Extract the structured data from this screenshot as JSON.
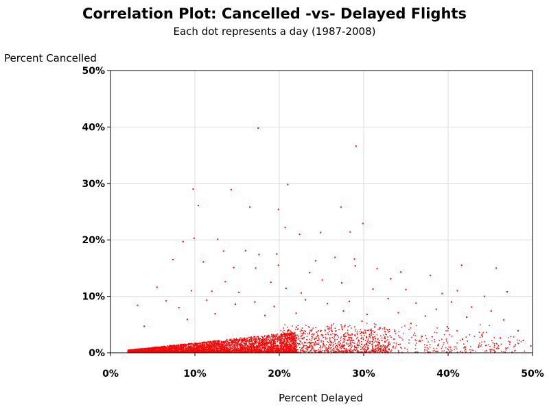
{
  "chart_data": {
    "type": "scatter",
    "title": "Correlation Plot: Cancelled -vs- Delayed Flights",
    "subtitle": "Each dot represents a day (1987-2008)",
    "xlabel": "Percent Delayed",
    "ylabel": "Percent Cancelled",
    "xlim": [
      0,
      50
    ],
    "ylim": [
      0,
      50
    ],
    "x_ticks": [
      0,
      10,
      20,
      30,
      40,
      50
    ],
    "y_ticks": [
      0,
      10,
      20,
      30,
      40,
      50
    ],
    "x_tick_labels": [
      "0%",
      "10%",
      "20%",
      "30%",
      "40%",
      "50%"
    ],
    "y_tick_labels": [
      "0%",
      "10%",
      "20%",
      "30%",
      "40%",
      "50%"
    ],
    "grid": true,
    "marker_color": "#ff0000",
    "series": [
      {
        "points": [
          [
            17.5,
            39.8
          ],
          [
            29.1,
            36.6
          ],
          [
            9.8,
            29.0
          ],
          [
            14.3,
            28.9
          ],
          [
            21.0,
            29.8
          ],
          [
            10.4,
            26.1
          ],
          [
            16.5,
            25.8
          ],
          [
            19.9,
            25.4
          ],
          [
            27.3,
            25.8
          ],
          [
            29.9,
            22.9
          ],
          [
            20.7,
            22.2
          ],
          [
            22.4,
            21.0
          ],
          [
            24.9,
            21.3
          ],
          [
            28.4,
            21.4
          ],
          [
            8.6,
            19.7
          ],
          [
            9.9,
            20.3
          ],
          [
            12.7,
            20.1
          ],
          [
            13.4,
            18.0
          ],
          [
            16.0,
            18.1
          ],
          [
            17.6,
            17.4
          ],
          [
            19.7,
            17.5
          ],
          [
            24.3,
            16.3
          ],
          [
            26.6,
            16.9
          ],
          [
            28.9,
            16.6
          ],
          [
            7.4,
            16.5
          ],
          [
            11.0,
            16.1
          ],
          [
            14.6,
            15.1
          ],
          [
            17.2,
            15.0
          ],
          [
            19.9,
            15.5
          ],
          [
            23.6,
            14.2
          ],
          [
            29.0,
            15.4
          ],
          [
            31.6,
            14.9
          ],
          [
            34.4,
            14.3
          ],
          [
            41.6,
            15.5
          ],
          [
            45.7,
            15.0
          ],
          [
            37.9,
            13.7
          ],
          [
            33.2,
            13.1
          ],
          [
            25.1,
            12.9
          ],
          [
            27.4,
            12.4
          ],
          [
            19.0,
            12.5
          ],
          [
            13.6,
            12.6
          ],
          [
            5.5,
            11.6
          ],
          [
            9.6,
            11.0
          ],
          [
            12.0,
            10.9
          ],
          [
            15.2,
            10.7
          ],
          [
            20.8,
            11.4
          ],
          [
            22.6,
            10.6
          ],
          [
            31.1,
            11.3
          ],
          [
            35.0,
            11.2
          ],
          [
            39.3,
            10.5
          ],
          [
            41.1,
            11.0
          ],
          [
            44.3,
            10.0
          ],
          [
            47.0,
            10.8
          ],
          [
            3.2,
            8.4
          ],
          [
            6.6,
            9.2
          ],
          [
            8.1,
            8.0
          ],
          [
            11.4,
            9.3
          ],
          [
            14.8,
            8.6
          ],
          [
            17.1,
            9.0
          ],
          [
            19.4,
            8.2
          ],
          [
            23.1,
            9.4
          ],
          [
            25.7,
            8.7
          ],
          [
            28.3,
            9.1
          ],
          [
            32.9,
            9.6
          ],
          [
            36.2,
            8.8
          ],
          [
            38.6,
            7.7
          ],
          [
            40.4,
            9.0
          ],
          [
            42.8,
            8.1
          ],
          [
            45.1,
            7.4
          ],
          [
            46.6,
            5.8
          ],
          [
            48.3,
            3.9
          ],
          [
            49.8,
            1.2
          ],
          [
            48.9,
            2.2
          ],
          [
            44.0,
            3.1
          ],
          [
            42.2,
            6.3
          ],
          [
            39.9,
            4.6
          ],
          [
            37.3,
            6.5
          ],
          [
            35.6,
            5.2
          ],
          [
            34.1,
            7.1
          ],
          [
            30.4,
            6.8
          ],
          [
            27.6,
            7.4
          ],
          [
            22.0,
            7.0
          ],
          [
            18.3,
            6.6
          ],
          [
            12.4,
            6.9
          ],
          [
            9.1,
            5.9
          ],
          [
            4.0,
            4.7
          ],
          [
            43.6,
            1.0
          ],
          [
            46.2,
            2.6
          ],
          [
            41.7,
            2.4
          ],
          [
            38.8,
            1.3
          ],
          [
            36.9,
            2.9
          ],
          [
            33.7,
            3.8
          ],
          [
            31.9,
            4.4
          ],
          [
            29.8,
            5.6
          ],
          [
            26.2,
            4.9
          ]
        ]
      }
    ]
  }
}
